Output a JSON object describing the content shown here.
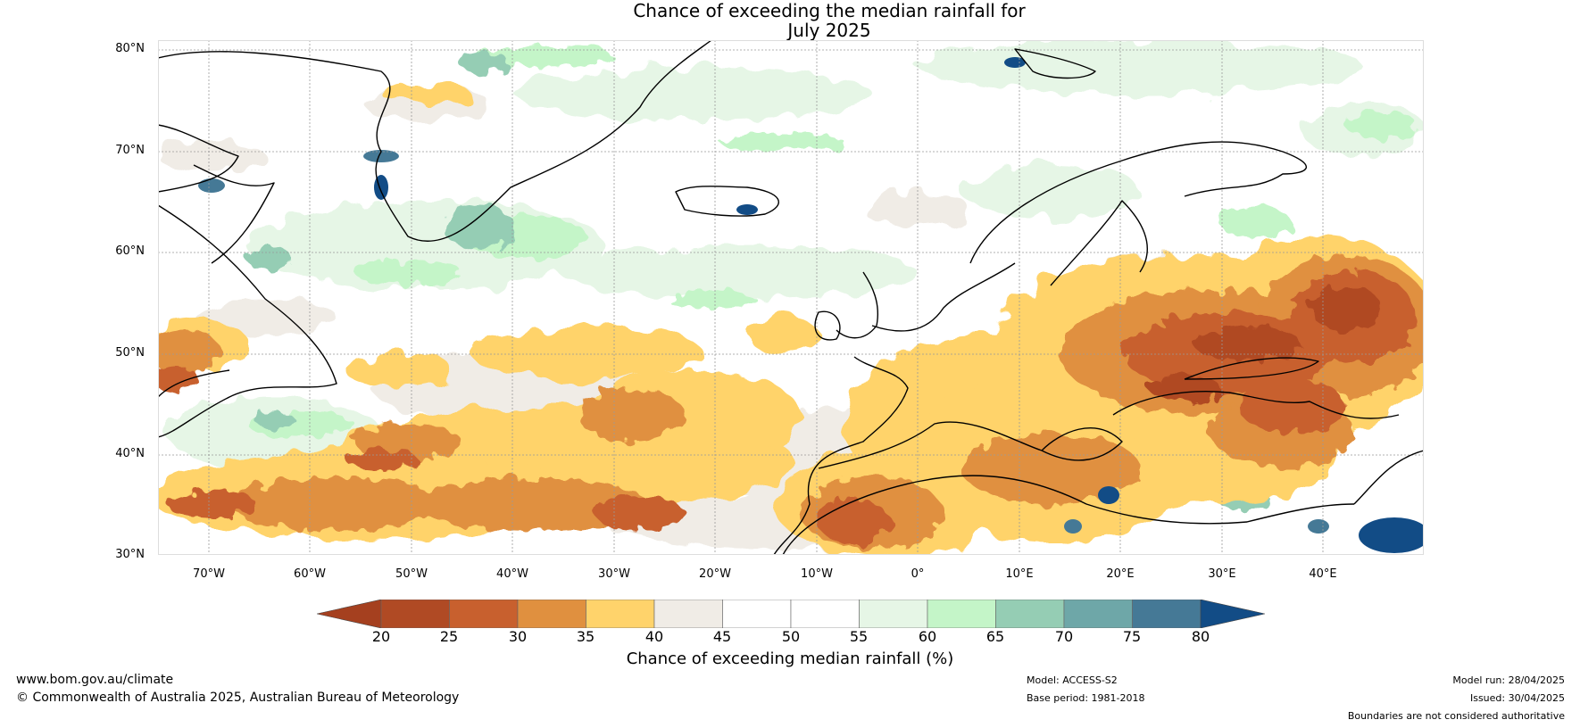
{
  "title_line1": "Chance of exceeding the median rainfall for",
  "title_line2": "July 2025",
  "lat_labels": [
    "80°N",
    "70°N",
    "60°N",
    "50°N",
    "40°N",
    "30°N"
  ],
  "lon_labels": [
    "70°W",
    "60°W",
    "50°W",
    "40°W",
    "30°W",
    "20°W",
    "10°W",
    "0°",
    "10°E",
    "20°E",
    "30°E",
    "40°E"
  ],
  "colorbar": {
    "label": "Chance of exceeding median rainfall (%)",
    "ticks": [
      "20",
      "25",
      "30",
      "35",
      "40",
      "45",
      "50",
      "55",
      "60",
      "65",
      "70",
      "75",
      "80"
    ],
    "under_color": "#a5401f",
    "colors": [
      "#b04a24",
      "#c8602e",
      "#e0903f",
      "#ffd36b",
      "#f0ece6",
      "#ffffff",
      "#ffffff",
      "#e6f6e6",
      "#c4f5c8",
      "#95cdb4",
      "#6ea7a8",
      "#457996"
    ],
    "over_color": "#124c86"
  },
  "footer": {
    "website": "www.bom.gov.au/climate",
    "copyright": "© Commonwealth of Australia 2025, Australian Bureau of Meteorology",
    "model": "Model: ACCESS-S2",
    "base_period": "Base period: 1981-2018",
    "model_run": "Model run: 28/04/2025",
    "issued": "Issued: 30/04/2025",
    "disclaimer": "Boundaries are not considered authoritative"
  },
  "map": {
    "region": "North Atlantic and Europe",
    "lon_range": [
      -75,
      50
    ],
    "lat_range": [
      30,
      81
    ],
    "dominant_pattern": "below median (orange/brown) over eastern Europe, Mediterranean, North Africa and subtropical Atlantic; near median (white/grey) over North Atlantic; above median (green/blue) over Greenland margins, Iceland, Svalbard and Labrador Sea"
  }
}
